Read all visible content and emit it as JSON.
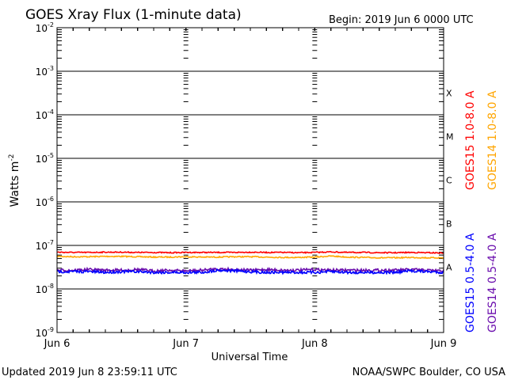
{
  "chart_data": {
    "type": "line",
    "title": "GOES Xray Flux (1-minute data)",
    "begin_label": "Begin:  2019 Jun 6 0000 UTC",
    "xlabel": "Universal Time",
    "ylabel": "Watts m",
    "ylabel_sup": "-2",
    "yscale": "log",
    "ylim": [
      1e-09,
      0.01
    ],
    "xlim": [
      0,
      72
    ],
    "x_unit": "hours since 2019 Jun 6 0000 UTC",
    "x_ticks": [
      {
        "x": 0,
        "label": "Jun 6"
      },
      {
        "x": 24,
        "label": "Jun 7"
      },
      {
        "x": 48,
        "label": "Jun 8"
      },
      {
        "x": 72,
        "label": "Jun 9"
      }
    ],
    "y_ticks": [
      {
        "exp": -2,
        "label": "10",
        "sup": "-2"
      },
      {
        "exp": -3,
        "label": "10",
        "sup": "-3"
      },
      {
        "exp": -4,
        "label": "10",
        "sup": "-4"
      },
      {
        "exp": -5,
        "label": "10",
        "sup": "-5"
      },
      {
        "exp": -6,
        "label": "10",
        "sup": "-6"
      },
      {
        "exp": -7,
        "label": "10",
        "sup": "-7"
      },
      {
        "exp": -8,
        "label": "10",
        "sup": "-8"
      },
      {
        "exp": -9,
        "label": "10",
        "sup": "-9"
      }
    ],
    "flare_classes": [
      {
        "label": "X",
        "exp": -4
      },
      {
        "label": "M",
        "exp": -5
      },
      {
        "label": "C",
        "exp": -6
      },
      {
        "label": "B",
        "exp": -7
      },
      {
        "label": "A",
        "exp": -8
      }
    ],
    "grid": "horizontal at decades",
    "legend_placement": "right, vertical",
    "x": [
      0,
      3,
      6,
      9,
      12,
      15,
      18,
      21,
      24,
      27,
      30,
      33,
      36,
      39,
      42,
      45,
      48,
      51,
      54,
      57,
      60,
      63,
      66,
      69,
      72
    ],
    "series": [
      {
        "name": "GOES15 1.0-8.0 A",
        "color": "#ff0000",
        "values": [
          7e-08,
          6.9e-08,
          6.9e-08,
          7e-08,
          7e-08,
          6.9e-08,
          6.9e-08,
          6.8e-08,
          6.9e-08,
          6.9e-08,
          6.9e-08,
          6.9e-08,
          7e-08,
          6.9e-08,
          6.9e-08,
          6.8e-08,
          6.9e-08,
          7.1e-08,
          6.9e-08,
          6.9e-08,
          6.8e-08,
          6.8e-08,
          6.9e-08,
          6.8e-08,
          6.7e-08
        ]
      },
      {
        "name": "GOES14 1.0-8.0 A",
        "color": "#ffa500",
        "values": [
          5.6e-08,
          5.5e-08,
          5.5e-08,
          5.6e-08,
          5.6e-08,
          5.5e-08,
          5.4e-08,
          5.4e-08,
          5.5e-08,
          5.4e-08,
          5.4e-08,
          5.5e-08,
          5.5e-08,
          5.4e-08,
          5.3e-08,
          5.3e-08,
          5.4e-08,
          5.7e-08,
          5.4e-08,
          5.3e-08,
          5.2e-08,
          5.2e-08,
          5.3e-08,
          5.2e-08,
          5.2e-08
        ]
      },
      {
        "name": "GOES15 0.5-4.0 A",
        "color": "#0000ff",
        "values": [
          2.5e-08,
          2.5e-08,
          2.5e-08,
          2.4e-08,
          2.5e-08,
          2.5e-08,
          2.4e-08,
          2.4e-08,
          2.4e-08,
          2.4e-08,
          2.7e-08,
          2.6e-08,
          2.5e-08,
          2.4e-08,
          2.4e-08,
          2.4e-08,
          2.4e-08,
          2.5e-08,
          2.4e-08,
          2.4e-08,
          2.4e-08,
          2.4e-08,
          2.6e-08,
          2.5e-08,
          2.4e-08
        ]
      },
      {
        "name": "GOES14 0.5-4.0 A",
        "color": "#6a0dad",
        "values": [
          2.7e-08,
          2.7e-08,
          2.8e-08,
          2.7e-08,
          2.7e-08,
          2.8e-08,
          2.6e-08,
          2.7e-08,
          2.6e-08,
          2.7e-08,
          2.9e-08,
          2.8e-08,
          2.7e-08,
          2.8e-08,
          2.7e-08,
          2.7e-08,
          2.8e-08,
          2.7e-08,
          2.7e-08,
          2.7e-08,
          2.7e-08,
          2.7e-08,
          2.8e-08,
          2.7e-08,
          2.6e-08
        ]
      }
    ]
  },
  "footer": {
    "updated": "Updated 2019 Jun  8 23:59:11 UTC",
    "credit": "NOAA/SWPC Boulder, CO USA"
  }
}
